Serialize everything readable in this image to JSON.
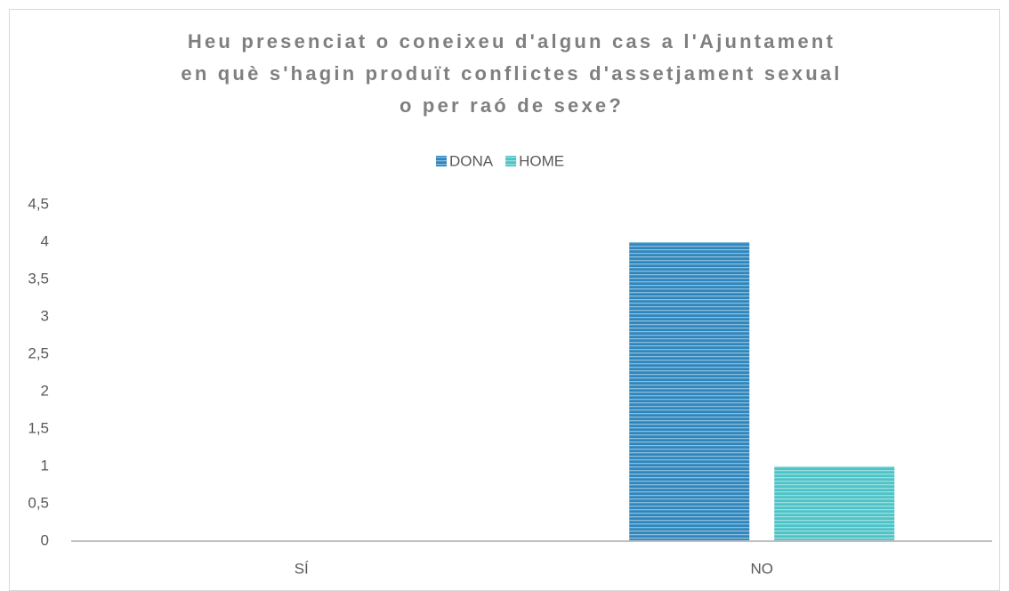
{
  "chart_data": {
    "type": "bar",
    "title": [
      "Heu presenciat o coneixeu d'algun cas a l'Ajuntament",
      "en què s'hagin produït conflictes d'assetjament sexual",
      "o per raó de sexe?"
    ],
    "categories": [
      "SÍ",
      "NO"
    ],
    "series": [
      {
        "name": "DONA",
        "color": "#2e86bd",
        "values": [
          0,
          4
        ]
      },
      {
        "name": "HOME",
        "color": "#4cc3c6",
        "values": [
          0,
          1
        ]
      }
    ],
    "ylim": [
      0,
      4.5
    ],
    "yticks": [
      0,
      {
        "value": 0.5,
        "label": "0,5"
      },
      1,
      {
        "value": 1.5,
        "label": "1,5"
      },
      2,
      {
        "value": 2.5,
        "label": "2,5"
      },
      3,
      {
        "value": 3.5,
        "label": "3,5"
      },
      4,
      {
        "value": 4.5,
        "label": "4,5"
      }
    ],
    "grid": false,
    "legend": "top"
  }
}
